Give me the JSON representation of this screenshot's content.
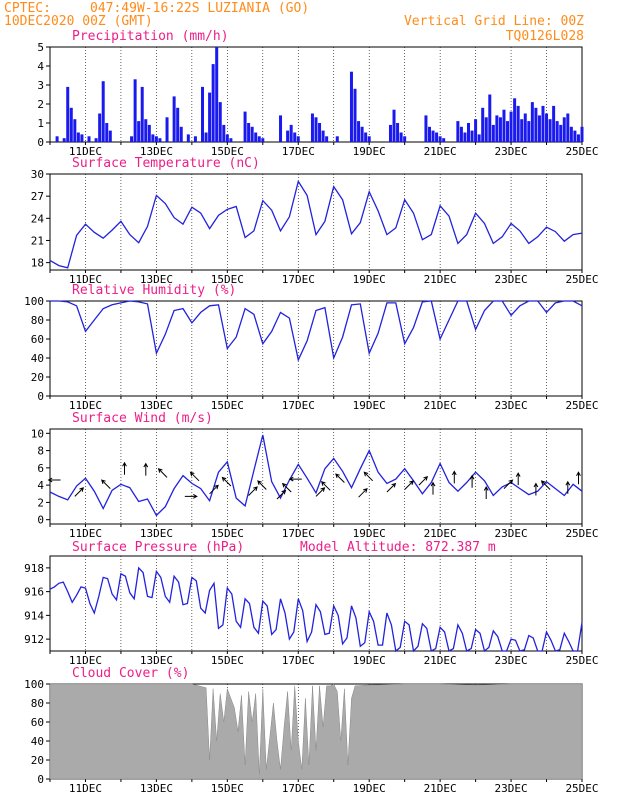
{
  "header": {
    "source": "CPTEC:",
    "location": "047:49W-16:22S  LUZIANIA (GO)",
    "run": "10DEC2020 00Z (GMT)",
    "grid_note": "Vertical Grid Line: 00Z",
    "model_code": "TQ0126L028"
  },
  "colors": {
    "header": "#ff8c1a",
    "title": "#ee1e88",
    "line": "#2222dd",
    "bar": "#1a1aee",
    "cloud": "#aaaaaa",
    "arrow": "#000000"
  },
  "x_axis": {
    "day_start": 10,
    "day_end": 25,
    "labels": [
      "11DEC",
      "13DEC",
      "15DEC",
      "17DEC",
      "19DEC",
      "21DEC",
      "23DEC",
      "25DEC"
    ]
  },
  "chart_data": [
    {
      "id": "precip",
      "type": "bar",
      "title": "Precipitation (mm/h)",
      "ylim": [
        0,
        5
      ],
      "ticks": [
        0,
        1,
        2,
        3,
        4,
        5
      ],
      "grid": false,
      "x": [
        10.2,
        10.4,
        10.5,
        10.6,
        10.7,
        10.8,
        10.9,
        11.1,
        11.3,
        11.4,
        11.5,
        11.6,
        11.7,
        12.3,
        12.4,
        12.5,
        12.6,
        12.7,
        12.8,
        12.9,
        13.0,
        13.1,
        13.3,
        13.5,
        13.6,
        13.7,
        13.9,
        14.1,
        14.3,
        14.4,
        14.5,
        14.6,
        14.7,
        14.8,
        14.9,
        15.0,
        15.1,
        15.5,
        15.6,
        15.7,
        15.8,
        15.9,
        16.0,
        16.5,
        16.7,
        16.8,
        16.9,
        17.0,
        17.4,
        17.5,
        17.6,
        17.7,
        17.8,
        18.1,
        18.5,
        18.6,
        18.7,
        18.8,
        18.9,
        19.0,
        19.6,
        19.7,
        19.8,
        19.9,
        20.0,
        20.6,
        20.7,
        20.8,
        20.9,
        21.0,
        21.1,
        21.5,
        21.6,
        21.7,
        21.8,
        21.9,
        22.0,
        22.1,
        22.2,
        22.3,
        22.4,
        22.5,
        22.6,
        22.7,
        22.8,
        22.9,
        23.0,
        23.1,
        23.2,
        23.3,
        23.4,
        23.5,
        23.6,
        23.7,
        23.8,
        23.9,
        24.0,
        24.1,
        24.2,
        24.3,
        24.4,
        24.5,
        24.6,
        24.7,
        24.8,
        24.9,
        25.0
      ],
      "values": [
        0.3,
        0.2,
        2.9,
        1.8,
        1.2,
        0.5,
        0.4,
        0.3,
        0.2,
        1.5,
        3.2,
        1.0,
        0.6,
        0.3,
        3.3,
        1.1,
        2.9,
        1.2,
        0.9,
        0.4,
        0.3,
        0.2,
        1.3,
        2.4,
        1.8,
        0.8,
        0.4,
        0.3,
        2.9,
        0.5,
        2.6,
        4.1,
        5.0,
        2.1,
        0.9,
        0.4,
        0.2,
        1.6,
        1.0,
        0.8,
        0.5,
        0.3,
        0.2,
        1.4,
        0.6,
        0.9,
        0.5,
        0.3,
        1.5,
        1.3,
        1.0,
        0.6,
        0.3,
        0.3,
        3.7,
        2.8,
        1.1,
        0.8,
        0.5,
        0.3,
        0.9,
        1.7,
        1.0,
        0.5,
        0.3,
        1.4,
        0.8,
        0.6,
        0.5,
        0.3,
        0.2,
        1.1,
        0.8,
        0.5,
        1.0,
        0.6,
        1.2,
        0.4,
        1.8,
        1.3,
        2.5,
        0.9,
        1.4,
        1.3,
        1.7,
        1.1,
        1.6,
        2.3,
        1.9,
        1.2,
        1.5,
        1.1,
        2.1,
        1.8,
        1.4,
        1.9,
        1.5,
        1.2,
        1.9,
        1.1,
        0.9,
        1.3,
        1.5,
        0.8,
        0.6,
        0.4,
        0.8
      ]
    },
    {
      "id": "temp",
      "type": "line",
      "title": "Surface Temperature (nC)",
      "ylim": [
        17,
        30
      ],
      "ticks": [
        18,
        21,
        24,
        27,
        30
      ],
      "grid": false,
      "x": [
        10,
        10.25,
        10.5,
        10.75,
        11,
        11.25,
        11.5,
        11.75,
        12,
        12.25,
        12.5,
        12.75,
        13,
        13.25,
        13.5,
        13.75,
        14,
        14.25,
        14.5,
        14.75,
        15,
        15.25,
        15.5,
        15.75,
        16,
        16.25,
        16.5,
        16.75,
        17,
        17.25,
        17.5,
        17.75,
        18,
        18.25,
        18.5,
        18.75,
        19,
        19.25,
        19.5,
        19.75,
        20,
        20.25,
        20.5,
        20.75,
        21,
        21.25,
        21.5,
        21.75,
        22,
        22.25,
        22.5,
        22.75,
        23,
        23.25,
        23.5,
        23.75,
        24,
        24.25,
        24.5,
        24.75,
        25
      ],
      "values": [
        18.3,
        17.6,
        17.3,
        21.7,
        23.2,
        22.1,
        21.3,
        22.4,
        23.6,
        21.8,
        20.7,
        22.9,
        27.1,
        26.0,
        24.1,
        23.2,
        25.5,
        24.7,
        22.6,
        24.4,
        25.2,
        25.6,
        21.4,
        22.3,
        26.4,
        25.1,
        22.3,
        24.2,
        29.0,
        27.1,
        21.8,
        23.6,
        28.3,
        26.5,
        21.9,
        23.4,
        27.6,
        25.0,
        21.8,
        22.7,
        26.5,
        24.7,
        21.1,
        21.8,
        25.7,
        24.3,
        20.6,
        21.8,
        24.7,
        23.3,
        20.6,
        21.5,
        23.3,
        22.3,
        20.6,
        21.5,
        22.8,
        22.2,
        20.9,
        21.8,
        22.0
      ]
    },
    {
      "id": "rh",
      "type": "line",
      "title": "Relative Humidity (%)",
      "ylim": [
        0,
        100
      ],
      "ticks": [
        0,
        20,
        40,
        60,
        80,
        100
      ],
      "grid": false,
      "x": [
        10,
        10.25,
        10.5,
        10.75,
        11,
        11.25,
        11.5,
        11.75,
        12,
        12.25,
        12.5,
        12.75,
        13,
        13.25,
        13.5,
        13.75,
        14,
        14.25,
        14.5,
        14.75,
        15,
        15.25,
        15.5,
        15.75,
        16,
        16.25,
        16.5,
        16.75,
        17,
        17.25,
        17.5,
        17.75,
        18,
        18.25,
        18.5,
        18.75,
        19,
        19.25,
        19.5,
        19.75,
        20,
        20.25,
        20.5,
        20.75,
        21,
        21.25,
        21.5,
        21.75,
        22,
        22.25,
        22.5,
        22.75,
        23,
        23.25,
        23.5,
        23.75,
        24,
        24.25,
        24.5,
        24.75,
        25
      ],
      "values": [
        100,
        100,
        99,
        95,
        68,
        80,
        92,
        96,
        98,
        100,
        99,
        97,
        45,
        65,
        90,
        92,
        77,
        88,
        95,
        96,
        50,
        62,
        92,
        86,
        55,
        68,
        88,
        82,
        38,
        58,
        90,
        93,
        40,
        62,
        96,
        97,
        45,
        66,
        98,
        98,
        55,
        72,
        99,
        100,
        60,
        80,
        100,
        100,
        70,
        90,
        100,
        100,
        85,
        95,
        100,
        100,
        88,
        98,
        100,
        100,
        95
      ]
    },
    {
      "id": "wind",
      "type": "line",
      "title": "Surface Wind (m/s)",
      "ylim": [
        -0.5,
        10.5
      ],
      "ticks": [
        0,
        2,
        4,
        6,
        8,
        10
      ],
      "grid": false,
      "x": [
        10,
        10.25,
        10.5,
        10.75,
        11,
        11.25,
        11.5,
        11.75,
        12,
        12.25,
        12.5,
        12.75,
        13,
        13.25,
        13.5,
        13.75,
        14,
        14.25,
        14.5,
        14.75,
        15,
        15.25,
        15.5,
        15.75,
        16,
        16.25,
        16.5,
        16.75,
        17,
        17.25,
        17.5,
        17.75,
        18,
        18.25,
        18.5,
        18.75,
        19,
        19.25,
        19.5,
        19.75,
        20,
        20.25,
        20.5,
        20.75,
        21,
        21.25,
        21.5,
        21.75,
        22,
        22.25,
        22.5,
        22.75,
        23,
        23.25,
        23.5,
        23.75,
        24,
        24.25,
        24.5,
        24.75,
        25
      ],
      "values": [
        3.2,
        2.7,
        2.3,
        3.9,
        4.8,
        3.3,
        1.3,
        3.4,
        4.1,
        3.7,
        2.1,
        2.4,
        0.5,
        1.5,
        3.6,
        5.1,
        4.2,
        3.6,
        2.2,
        5.5,
        6.7,
        2.5,
        1.6,
        5.7,
        9.8,
        4.4,
        2.5,
        4.6,
        6.4,
        4.8,
        3.1,
        5.9,
        7.1,
        5.6,
        3.7,
        5.9,
        8.0,
        5.5,
        4.2,
        4.7,
        5.9,
        4.5,
        3.0,
        4.3,
        6.5,
        4.3,
        3.3,
        4.3,
        5.5,
        4.5,
        2.8,
        3.8,
        4.3,
        3.6,
        2.9,
        3.3,
        4.4,
        3.6,
        2.8,
        4.1,
        3.3
      ],
      "arrows_x": [
        10.3,
        10.7,
        11.7,
        12.1,
        12.7,
        13.3,
        13.8,
        14.2,
        14.5,
        15.1,
        15.6,
        16.1,
        16.4,
        16.8,
        17.1,
        17.5,
        17.9,
        18.3,
        18.7,
        19.1,
        19.5,
        20.0,
        20.4,
        20.8,
        21.4,
        21.9,
        22.3,
        22.8,
        23.2,
        23.7,
        24.1,
        24.6,
        24.9
      ],
      "arrows_y": [
        4.6,
        2.7,
        3.6,
        5.2,
        5.1,
        4.9,
        2.7,
        4.5,
        3.0,
        3.9,
        2.8,
        3.5,
        2.4,
        3.2,
        4.7,
        2.7,
        3.4,
        4.3,
        2.6,
        4.5,
        3.2,
        3.5,
        4.0,
        2.9,
        4.2,
        3.7,
        2.4,
        3.6,
        4.0,
        2.8,
        3.5,
        3.0,
        4.1
      ],
      "arrows_u": [
        -1,
        1,
        -1,
        0,
        0,
        -1,
        1,
        -1,
        1,
        -1,
        1,
        -1,
        1,
        -1,
        -1,
        1,
        -1,
        -1,
        1,
        -1,
        1,
        1,
        1,
        0,
        0,
        0,
        0,
        1,
        0,
        0,
        -1,
        0,
        0
      ],
      "arrows_v": [
        0,
        1,
        1,
        1,
        1,
        1,
        0,
        1,
        1,
        1,
        1,
        1,
        1,
        1,
        0,
        1,
        1,
        1,
        1,
        1,
        1,
        1,
        1,
        1,
        1,
        1,
        1,
        1,
        1,
        1,
        1,
        1,
        1
      ]
    },
    {
      "id": "pres",
      "type": "line",
      "title": "Surface Pressure (hPa)",
      "annotation": "Model Altitude: 872.387 m",
      "ylim": [
        911,
        919
      ],
      "ticks": [
        912,
        914,
        916,
        918
      ],
      "grid": false,
      "x": [
        10,
        10.125,
        10.25,
        10.375,
        10.5,
        10.625,
        10.75,
        10.875,
        11,
        11.125,
        11.25,
        11.375,
        11.5,
        11.625,
        11.75,
        11.875,
        12,
        12.125,
        12.25,
        12.375,
        12.5,
        12.625,
        12.75,
        12.875,
        13,
        13.125,
        13.25,
        13.375,
        13.5,
        13.625,
        13.75,
        13.875,
        14,
        14.125,
        14.25,
        14.375,
        14.5,
        14.625,
        14.75,
        14.875,
        15,
        15.125,
        15.25,
        15.375,
        15.5,
        15.625,
        15.75,
        15.875,
        16,
        16.125,
        16.25,
        16.375,
        16.5,
        16.625,
        16.75,
        16.875,
        17,
        17.125,
        17.25,
        17.375,
        17.5,
        17.625,
        17.75,
        17.875,
        18,
        18.125,
        18.25,
        18.375,
        18.5,
        18.625,
        18.75,
        18.875,
        19,
        19.125,
        19.25,
        19.375,
        19.5,
        19.625,
        19.75,
        19.875,
        20,
        20.125,
        20.25,
        20.375,
        20.5,
        20.625,
        20.75,
        20.875,
        21,
        21.125,
        21.25,
        21.375,
        21.5,
        21.625,
        21.75,
        21.875,
        22,
        22.125,
        22.25,
        22.375,
        22.5,
        22.625,
        22.75,
        22.875,
        23,
        23.125,
        23.25,
        23.375,
        23.5,
        23.625,
        23.75,
        23.875,
        24,
        24.125,
        24.25,
        24.375,
        24.5,
        24.625,
        24.75,
        24.875,
        25
      ],
      "values": [
        916.2,
        916.4,
        916.7,
        916.8,
        916.0,
        915.1,
        915.7,
        916.4,
        916.3,
        915.0,
        914.2,
        915.6,
        917.2,
        917.1,
        915.8,
        915.3,
        917.5,
        917.3,
        915.9,
        915.4,
        918.0,
        917.6,
        915.6,
        915.5,
        917.7,
        917.2,
        915.6,
        915.1,
        917.3,
        916.8,
        914.9,
        915.0,
        917.2,
        916.9,
        914.6,
        914.2,
        916.1,
        916.7,
        912.9,
        913.2,
        916.3,
        915.8,
        913.5,
        913.0,
        915.4,
        915.0,
        913.0,
        912.5,
        915.2,
        914.8,
        912.4,
        912.8,
        915.4,
        914.2,
        912.0,
        912.6,
        915.4,
        914.4,
        911.8,
        912.6,
        914.9,
        914.3,
        912.4,
        912.5,
        914.8,
        914.0,
        911.6,
        912.1,
        914.8,
        913.8,
        911.4,
        911.7,
        914.3,
        913.5,
        911.5,
        911.5,
        914.2,
        913.2,
        911.0,
        911.3,
        913.5,
        913.2,
        911.0,
        911.4,
        913.3,
        912.9,
        911.0,
        911.2,
        913.0,
        912.6,
        910.9,
        911.2,
        913.2,
        912.5,
        910.9,
        911.2,
        912.8,
        912.5,
        911.0,
        911.3,
        912.7,
        912.2,
        910.8,
        911.0,
        912.0,
        911.9,
        910.8,
        911.1,
        912.3,
        912.1,
        910.9,
        911.0,
        912.6,
        911.9,
        910.8,
        911.1,
        912.5,
        911.8,
        910.9,
        911.0,
        913.4
      ]
    },
    {
      "id": "cloud",
      "type": "area",
      "title": "Cloud Cover (%)",
      "ylim": [
        0,
        100
      ],
      "ticks": [
        0,
        20,
        40,
        60,
        80,
        100
      ],
      "grid": false,
      "x": [
        10,
        10.5,
        11,
        11.5,
        12,
        12.5,
        13,
        13.5,
        14,
        14.2,
        14.4,
        14.5,
        14.6,
        14.7,
        14.8,
        14.9,
        15.0,
        15.2,
        15.3,
        15.4,
        15.5,
        15.6,
        15.7,
        15.8,
        15.9,
        16.0,
        16.1,
        16.2,
        16.3,
        16.4,
        16.5,
        16.6,
        16.7,
        16.8,
        16.9,
        17.0,
        17.1,
        17.2,
        17.3,
        17.4,
        17.5,
        17.6,
        17.7,
        17.8,
        17.9,
        18.0,
        18.1,
        18.2,
        18.3,
        18.4,
        18.5,
        18.6,
        19,
        20,
        21,
        22,
        23,
        24,
        25
      ],
      "values": [
        100,
        100,
        100,
        100,
        100,
        100,
        100,
        100,
        100,
        98,
        96,
        20,
        95,
        40,
        90,
        60,
        95,
        75,
        50,
        88,
        15,
        92,
        60,
        90,
        5,
        95,
        10,
        45,
        80,
        40,
        10,
        55,
        92,
        30,
        98,
        40,
        10,
        85,
        15,
        98,
        30,
        98,
        55,
        98,
        98,
        100,
        92,
        40,
        95,
        15,
        85,
        98,
        99,
        100,
        100,
        99,
        100,
        100,
        100
      ]
    }
  ]
}
